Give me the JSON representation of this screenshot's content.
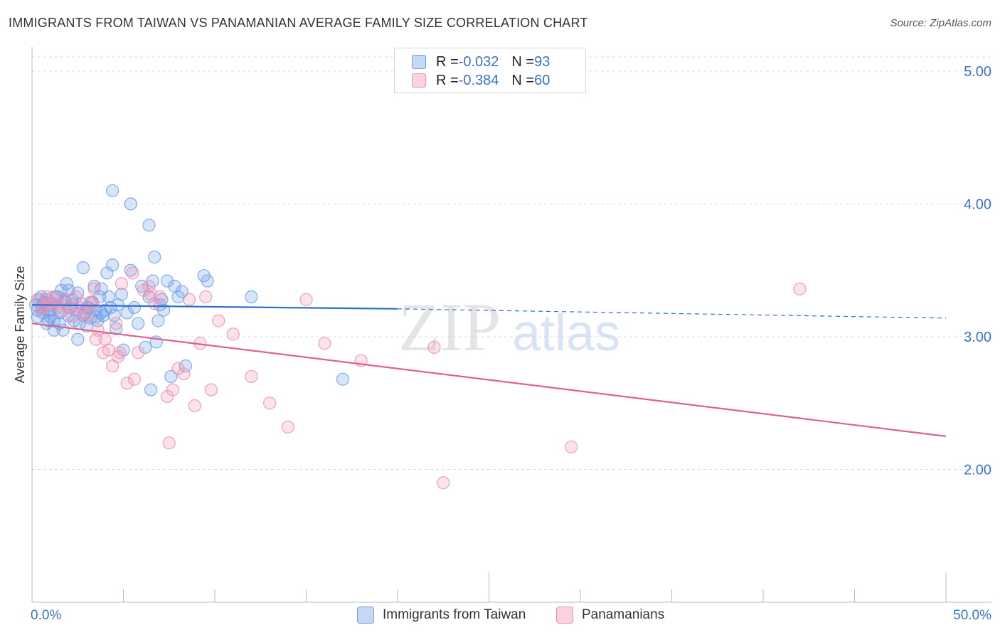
{
  "header": {
    "title": "IMMIGRANTS FROM TAIWAN VS PANAMANIAN AVERAGE FAMILY SIZE CORRELATION CHART",
    "source": "Source: ZipAtlas.com"
  },
  "watermark": {
    "zip": "ZIP",
    "atlas": "atlas"
  },
  "legend": {
    "rows": [
      {
        "r_label": "R = ",
        "r_value": "-0.032",
        "n_label": "N = ",
        "n_value": "93",
        "color": "#6fa0e8"
      },
      {
        "r_label": "R = ",
        "r_value": "-0.384",
        "n_label": "N = ",
        "n_value": "60",
        "color": "#f08fb0"
      }
    ]
  },
  "bottom_legend": [
    {
      "label": "Immigrants from Taiwan",
      "color": "#6fa0e8"
    },
    {
      "label": "Panamanians",
      "color": "#f08fb0"
    }
  ],
  "chart_data": {
    "type": "scatter",
    "title": "IMMIGRANTS FROM TAIWAN VS PANAMANIAN AVERAGE FAMILY SIZE CORRELATION CHART",
    "xlabel": "",
    "ylabel": "Average Family Size",
    "xlim": [
      0,
      50
    ],
    "ylim": [
      1.0,
      5.15
    ],
    "x_tick_labels": [
      "0.0%",
      "50.0%"
    ],
    "y_ticks": [
      2.0,
      3.0,
      4.0,
      5.0
    ],
    "y_tick_labels": [
      "2.00",
      "3.00",
      "4.00",
      "5.00"
    ],
    "grid": "horizontal dashed",
    "legend_position": "top-center",
    "series": [
      {
        "name": "Immigrants from Taiwan",
        "color": "#6fa0e8",
        "line_color": "#2e6fd0",
        "trend": {
          "x0": 0,
          "y0": 3.24,
          "x1": 20,
          "y1": 3.21,
          "x_end": 50,
          "y_end": 3.14
        },
        "points": [
          [
            0.2,
            3.24
          ],
          [
            0.3,
            3.2
          ],
          [
            0.4,
            3.28
          ],
          [
            0.5,
            3.22
          ],
          [
            0.6,
            3.18
          ],
          [
            0.7,
            3.26
          ],
          [
            0.8,
            3.1
          ],
          [
            0.9,
            3.2
          ],
          [
            1.0,
            3.15
          ],
          [
            1.1,
            3.25
          ],
          [
            1.2,
            3.12
          ],
          [
            1.3,
            3.3
          ],
          [
            1.4,
            3.22
          ],
          [
            1.5,
            3.18
          ],
          [
            1.6,
            3.35
          ],
          [
            1.7,
            3.05
          ],
          [
            1.8,
            3.28
          ],
          [
            1.9,
            3.4
          ],
          [
            2.0,
            3.16
          ],
          [
            2.1,
            3.22
          ],
          [
            2.2,
            3.28
          ],
          [
            2.3,
            3.12
          ],
          [
            2.4,
            3.2
          ],
          [
            2.5,
            3.33
          ],
          [
            2.6,
            3.1
          ],
          [
            2.7,
            3.25
          ],
          [
            2.8,
            3.52
          ],
          [
            2.9,
            3.18
          ],
          [
            3.0,
            3.08
          ],
          [
            3.1,
            3.22
          ],
          [
            3.2,
            3.14
          ],
          [
            3.3,
            3.26
          ],
          [
            3.4,
            3.38
          ],
          [
            3.5,
            3.2
          ],
          [
            3.6,
            3.12
          ],
          [
            3.7,
            3.3
          ],
          [
            3.8,
            3.36
          ],
          [
            3.9,
            3.16
          ],
          [
            4.0,
            3.2
          ],
          [
            4.1,
            3.48
          ],
          [
            4.2,
            3.3
          ],
          [
            4.3,
            3.22
          ],
          [
            4.4,
            3.54
          ],
          [
            4.6,
            3.06
          ],
          [
            4.7,
            3.24
          ],
          [
            4.9,
            3.32
          ],
          [
            5.0,
            2.9
          ],
          [
            5.2,
            3.18
          ],
          [
            5.4,
            3.5
          ],
          [
            5.6,
            3.22
          ],
          [
            5.8,
            3.1
          ],
          [
            6.0,
            3.38
          ],
          [
            6.2,
            2.92
          ],
          [
            6.4,
            3.3
          ],
          [
            6.6,
            3.42
          ],
          [
            6.8,
            2.96
          ],
          [
            6.9,
            3.12
          ],
          [
            7.0,
            3.24
          ],
          [
            7.2,
            3.2
          ],
          [
            7.4,
            3.42
          ],
          [
            7.6,
            2.7
          ],
          [
            7.8,
            3.38
          ],
          [
            8.0,
            3.3
          ],
          [
            8.2,
            3.34
          ],
          [
            8.4,
            2.78
          ],
          [
            9.4,
            3.46
          ],
          [
            9.6,
            3.42
          ],
          [
            12.0,
            3.3
          ],
          [
            17.0,
            2.68
          ],
          [
            6.5,
            2.6
          ],
          [
            4.4,
            4.1
          ],
          [
            5.4,
            4.0
          ],
          [
            6.4,
            3.84
          ],
          [
            6.7,
            3.6
          ],
          [
            0.5,
            3.3
          ],
          [
            1.2,
            3.05
          ],
          [
            2.5,
            2.98
          ],
          [
            3.5,
            3.15
          ],
          [
            0.8,
            3.28
          ],
          [
            1.5,
            3.1
          ],
          [
            2.0,
            3.35
          ],
          [
            3.0,
            3.22
          ],
          [
            4.5,
            3.16
          ],
          [
            0.3,
            3.15
          ],
          [
            1.0,
            3.2
          ],
          [
            1.8,
            3.26
          ],
          [
            2.8,
            3.16
          ],
          [
            3.8,
            3.18
          ],
          [
            0.6,
            3.25
          ],
          [
            1.4,
            3.3
          ],
          [
            7.1,
            3.28
          ],
          [
            0.9,
            3.12
          ],
          [
            2.2,
            3.24
          ]
        ]
      },
      {
        "name": "Panamanians",
        "color": "#f08fb0",
        "line_color": "#e06090",
        "trend": {
          "x0": 0,
          "y0": 3.1,
          "x1": 50,
          "y1": 2.25
        },
        "points": [
          [
            0.3,
            3.28
          ],
          [
            0.6,
            3.22
          ],
          [
            0.9,
            3.25
          ],
          [
            1.2,
            3.3
          ],
          [
            1.6,
            3.2
          ],
          [
            2.0,
            3.22
          ],
          [
            2.4,
            3.3
          ],
          [
            2.8,
            3.18
          ],
          [
            3.0,
            3.15
          ],
          [
            3.3,
            3.25
          ],
          [
            3.6,
            3.05
          ],
          [
            3.9,
            2.88
          ],
          [
            4.2,
            2.9
          ],
          [
            4.4,
            2.78
          ],
          [
            4.7,
            2.85
          ],
          [
            4.9,
            3.4
          ],
          [
            5.2,
            2.65
          ],
          [
            5.5,
            3.48
          ],
          [
            5.8,
            2.88
          ],
          [
            6.1,
            3.35
          ],
          [
            6.4,
            3.38
          ],
          [
            6.7,
            3.25
          ],
          [
            7.0,
            3.3
          ],
          [
            7.4,
            2.55
          ],
          [
            7.7,
            2.6
          ],
          [
            8.0,
            2.76
          ],
          [
            8.3,
            2.72
          ],
          [
            8.6,
            3.28
          ],
          [
            8.9,
            2.48
          ],
          [
            9.2,
            2.95
          ],
          [
            9.5,
            3.3
          ],
          [
            9.8,
            2.6
          ],
          [
            10.2,
            3.12
          ],
          [
            11.0,
            3.02
          ],
          [
            12.0,
            2.7
          ],
          [
            13.0,
            2.5
          ],
          [
            14.0,
            2.32
          ],
          [
            15.0,
            3.28
          ],
          [
            16.0,
            2.95
          ],
          [
            18.0,
            2.82
          ],
          [
            22.0,
            2.92
          ],
          [
            22.5,
            1.9
          ],
          [
            29.5,
            2.17
          ],
          [
            42.0,
            3.36
          ],
          [
            7.5,
            2.2
          ],
          [
            3.5,
            2.98
          ],
          [
            2.2,
            3.15
          ],
          [
            1.0,
            3.25
          ],
          [
            0.5,
            3.2
          ],
          [
            1.8,
            3.28
          ],
          [
            2.6,
            3.22
          ],
          [
            3.2,
            3.26
          ],
          [
            4.0,
            2.98
          ],
          [
            4.8,
            2.88
          ],
          [
            5.6,
            2.68
          ],
          [
            6.5,
            3.32
          ],
          [
            0.8,
            3.3
          ],
          [
            1.4,
            3.24
          ],
          [
            3.4,
            3.36
          ],
          [
            4.6,
            3.1
          ]
        ]
      }
    ]
  }
}
